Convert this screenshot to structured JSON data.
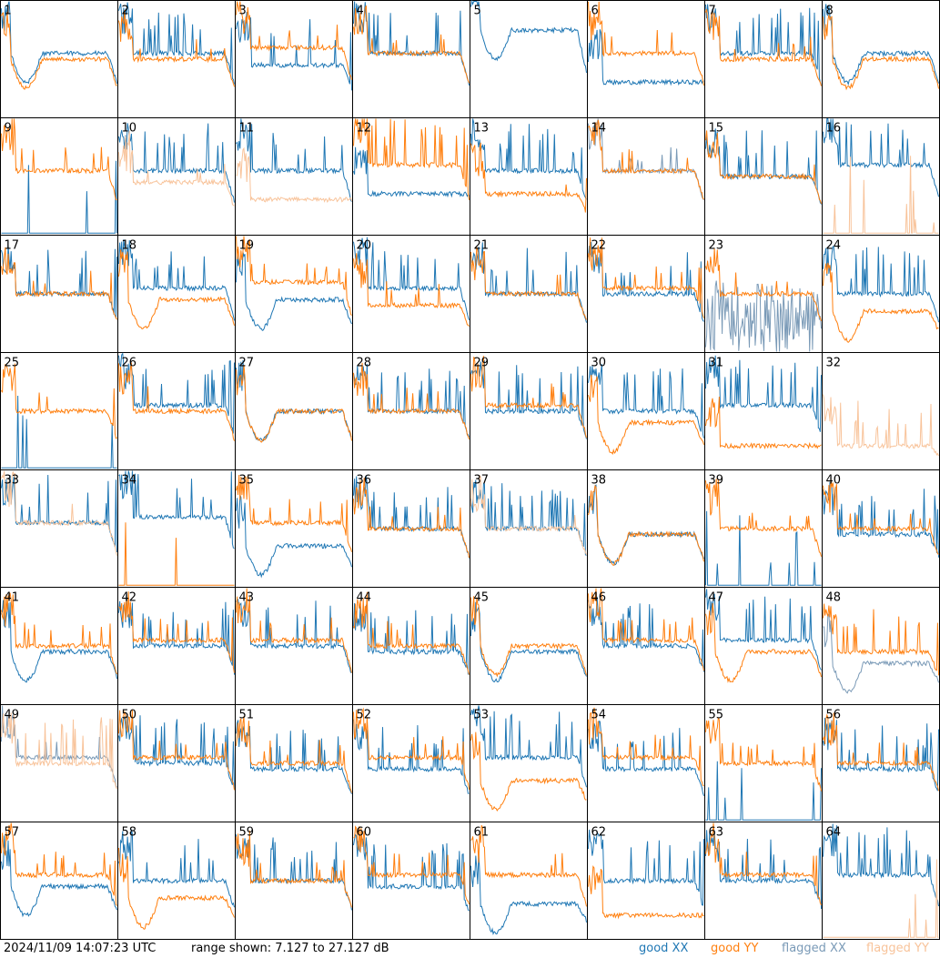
{
  "footer": {
    "timestamp": "2024/11/09 14:07:23 UTC",
    "range": "range shown: 7.127 to 27.127 dB",
    "legend": {
      "good_xx": "good XX",
      "good_yy": "good YY",
      "flagged_xx": "flagged XX",
      "flagged_yy": "flagged YY"
    }
  },
  "colors": {
    "good_xx": "#1f77b4",
    "good_yy": "#ff7f0e",
    "flagged_xx": "#7a9ab7",
    "flagged_yy": "#f8c39a"
  },
  "chart_data": {
    "type": "line",
    "ylim": [
      7.127,
      27.127
    ],
    "grid": {
      "rows": 8,
      "cols": 8
    },
    "panels": [
      {
        "label": "1",
        "xx": {
          "status": "good",
          "shape": "dip",
          "level": 0.55
        },
        "yy": {
          "status": "good",
          "shape": "dip",
          "level": 0.5
        }
      },
      {
        "label": "2",
        "xx": {
          "status": "good",
          "shape": "spiky",
          "level": 0.55
        },
        "yy": {
          "status": "good",
          "shape": "normal",
          "level": 0.5
        }
      },
      {
        "label": "3",
        "xx": {
          "status": "good",
          "shape": "spiky",
          "level": 0.45
        },
        "yy": {
          "status": "good",
          "shape": "normal",
          "level": 0.6
        }
      },
      {
        "label": "4",
        "xx": {
          "status": "good",
          "shape": "spiky",
          "level": 0.55
        },
        "yy": {
          "status": "good",
          "shape": "normal",
          "level": 0.55
        }
      },
      {
        "label": "5",
        "xx": {
          "status": "good",
          "shape": "dip",
          "level": 0.75
        },
        "yy": {
          "status": "good",
          "shape": "none",
          "level": 0
        }
      },
      {
        "label": "6",
        "xx": {
          "status": "good",
          "shape": "low",
          "level": 0.3
        },
        "yy": {
          "status": "good",
          "shape": "normal",
          "level": 0.55
        }
      },
      {
        "label": "7",
        "xx": {
          "status": "good",
          "shape": "spiky",
          "level": 0.55
        },
        "yy": {
          "status": "good",
          "shape": "normal",
          "level": 0.5
        }
      },
      {
        "label": "8",
        "xx": {
          "status": "good",
          "shape": "dip",
          "level": 0.55
        },
        "yy": {
          "status": "good",
          "shape": "dip",
          "level": 0.5
        }
      },
      {
        "label": "9",
        "xx": {
          "status": "good",
          "shape": "bottom",
          "level": 0.05
        },
        "yy": {
          "status": "good",
          "shape": "normal",
          "level": 0.55
        }
      },
      {
        "label": "10",
        "xx": {
          "status": "good",
          "shape": "spiky",
          "level": 0.55
        },
        "yy": {
          "status": "flagged",
          "shape": "normal",
          "level": 0.45
        }
      },
      {
        "label": "11",
        "xx": {
          "status": "good",
          "shape": "spiky",
          "level": 0.55
        },
        "yy": {
          "status": "flagged",
          "shape": "low",
          "level": 0.3
        }
      },
      {
        "label": "12",
        "xx": {
          "status": "good",
          "shape": "low",
          "level": 0.35
        },
        "yy": {
          "status": "good",
          "shape": "spiky",
          "level": 0.6
        }
      },
      {
        "label": "13",
        "xx": {
          "status": "good",
          "shape": "spiky",
          "level": 0.55
        },
        "yy": {
          "status": "good",
          "shape": "normal",
          "level": 0.35
        }
      },
      {
        "label": "14",
        "xx": {
          "status": "flagged",
          "shape": "normal",
          "level": 0.55
        },
        "yy": {
          "status": "good",
          "shape": "normal",
          "level": 0.55
        }
      },
      {
        "label": "15",
        "xx": {
          "status": "good",
          "shape": "spiky",
          "level": 0.5
        },
        "yy": {
          "status": "good",
          "shape": "normal",
          "level": 0.5
        }
      },
      {
        "label": "16",
        "xx": {
          "status": "good",
          "shape": "spiky",
          "level": 0.6
        },
        "yy": {
          "status": "flagged",
          "shape": "bottom",
          "level": 0.02
        }
      },
      {
        "label": "17",
        "xx": {
          "status": "good",
          "shape": "spiky",
          "level": 0.5
        },
        "yy": {
          "status": "good",
          "shape": "normal",
          "level": 0.5
        }
      },
      {
        "label": "18",
        "xx": {
          "status": "good",
          "shape": "spiky",
          "level": 0.55
        },
        "yy": {
          "status": "good",
          "shape": "dip",
          "level": 0.45
        }
      },
      {
        "label": "19",
        "xx": {
          "status": "good",
          "shape": "dip",
          "level": 0.45
        },
        "yy": {
          "status": "good",
          "shape": "normal",
          "level": 0.6
        }
      },
      {
        "label": "20",
        "xx": {
          "status": "good",
          "shape": "spiky",
          "level": 0.55
        },
        "yy": {
          "status": "good",
          "shape": "normal",
          "level": 0.4
        }
      },
      {
        "label": "21",
        "xx": {
          "status": "good",
          "shape": "spiky",
          "level": 0.5
        },
        "yy": {
          "status": "good",
          "shape": "normal",
          "level": 0.5
        }
      },
      {
        "label": "22",
        "xx": {
          "status": "good",
          "shape": "spiky",
          "level": 0.5
        },
        "yy": {
          "status": "good",
          "shape": "normal",
          "level": 0.55
        }
      },
      {
        "label": "23",
        "xx": {
          "status": "flagged",
          "shape": "noisy",
          "level": 0.3
        },
        "yy": {
          "status": "good",
          "shape": "normal",
          "level": 0.5
        }
      },
      {
        "label": "24",
        "xx": {
          "status": "good",
          "shape": "spiky",
          "level": 0.5
        },
        "yy": {
          "status": "good",
          "shape": "dip",
          "level": 0.35
        }
      },
      {
        "label": "25",
        "xx": {
          "status": "good",
          "shape": "bottom",
          "level": 0.02
        },
        "yy": {
          "status": "good",
          "shape": "normal",
          "level": 0.5
        }
      },
      {
        "label": "26",
        "xx": {
          "status": "good",
          "shape": "spiky",
          "level": 0.55
        },
        "yy": {
          "status": "good",
          "shape": "normal",
          "level": 0.5
        }
      },
      {
        "label": "27",
        "xx": {
          "status": "good",
          "shape": "dip",
          "level": 0.5
        },
        "yy": {
          "status": "good",
          "shape": "dip",
          "level": 0.5
        }
      },
      {
        "label": "28",
        "xx": {
          "status": "good",
          "shape": "spiky",
          "level": 0.5
        },
        "yy": {
          "status": "good",
          "shape": "normal",
          "level": 0.5
        }
      },
      {
        "label": "29",
        "xx": {
          "status": "good",
          "shape": "spiky",
          "level": 0.5
        },
        "yy": {
          "status": "good",
          "shape": "normal",
          "level": 0.55
        }
      },
      {
        "label": "30",
        "xx": {
          "status": "good",
          "shape": "spiky",
          "level": 0.5
        },
        "yy": {
          "status": "good",
          "shape": "dip",
          "level": 0.4
        }
      },
      {
        "label": "31",
        "xx": {
          "status": "good",
          "shape": "spiky",
          "level": 0.55
        },
        "yy": {
          "status": "good",
          "shape": "low",
          "level": 0.2
        }
      },
      {
        "label": "32",
        "xx": {
          "status": "good",
          "shape": "none",
          "level": 0
        },
        "yy": {
          "status": "flagged",
          "shape": "spiky",
          "level": 0.2
        }
      },
      {
        "label": "33",
        "xx": {
          "status": "good",
          "shape": "spiky",
          "level": 0.55
        },
        "yy": {
          "status": "flagged",
          "shape": "normal",
          "level": 0.55
        }
      },
      {
        "label": "34",
        "xx": {
          "status": "good",
          "shape": "spiky",
          "level": 0.6
        },
        "yy": {
          "status": "good",
          "shape": "bottom",
          "level": 0.02
        }
      },
      {
        "label": "35",
        "xx": {
          "status": "good",
          "shape": "dip",
          "level": 0.35
        },
        "yy": {
          "status": "good",
          "shape": "normal",
          "level": 0.55
        }
      },
      {
        "label": "36",
        "xx": {
          "status": "good",
          "shape": "spiky",
          "level": 0.5
        },
        "yy": {
          "status": "good",
          "shape": "normal",
          "level": 0.5
        }
      },
      {
        "label": "37",
        "xx": {
          "status": "good",
          "shape": "spiky",
          "level": 0.5
        },
        "yy": {
          "status": "flagged",
          "shape": "normal",
          "level": 0.5
        }
      },
      {
        "label": "38",
        "xx": {
          "status": "good",
          "shape": "dip",
          "level": 0.45
        },
        "yy": {
          "status": "good",
          "shape": "dip",
          "level": 0.45
        }
      },
      {
        "label": "39",
        "xx": {
          "status": "good",
          "shape": "bottom",
          "level": 0.02
        },
        "yy": {
          "status": "good",
          "shape": "normal",
          "level": 0.5
        }
      },
      {
        "label": "40",
        "xx": {
          "status": "good",
          "shape": "spiky",
          "level": 0.45
        },
        "yy": {
          "status": "good",
          "shape": "normal",
          "level": 0.5
        }
      },
      {
        "label": "41",
        "xx": {
          "status": "good",
          "shape": "dip",
          "level": 0.45
        },
        "yy": {
          "status": "good",
          "shape": "normal",
          "level": 0.5
        }
      },
      {
        "label": "42",
        "xx": {
          "status": "good",
          "shape": "spiky",
          "level": 0.5
        },
        "yy": {
          "status": "good",
          "shape": "normal",
          "level": 0.55
        }
      },
      {
        "label": "43",
        "xx": {
          "status": "good",
          "shape": "spiky",
          "level": 0.5
        },
        "yy": {
          "status": "good",
          "shape": "normal",
          "level": 0.55
        }
      },
      {
        "label": "44",
        "xx": {
          "status": "good",
          "shape": "spiky",
          "level": 0.45
        },
        "yy": {
          "status": "good",
          "shape": "normal",
          "level": 0.5
        }
      },
      {
        "label": "45",
        "xx": {
          "status": "good",
          "shape": "dip",
          "level": 0.45
        },
        "yy": {
          "status": "good",
          "shape": "dip",
          "level": 0.5
        }
      },
      {
        "label": "46",
        "xx": {
          "status": "good",
          "shape": "spiky",
          "level": 0.5
        },
        "yy": {
          "status": "good",
          "shape": "normal",
          "level": 0.55
        }
      },
      {
        "label": "47",
        "xx": {
          "status": "good",
          "shape": "spiky",
          "level": 0.55
        },
        "yy": {
          "status": "good",
          "shape": "dip",
          "level": 0.45
        }
      },
      {
        "label": "48",
        "xx": {
          "status": "flagged",
          "shape": "dip",
          "level": 0.35
        },
        "yy": {
          "status": "good",
          "shape": "spiky",
          "level": 0.45
        }
      },
      {
        "label": "49",
        "xx": {
          "status": "flagged",
          "shape": "normal",
          "level": 0.55
        },
        "yy": {
          "status": "flagged",
          "shape": "spiky",
          "level": 0.5
        }
      },
      {
        "label": "50",
        "xx": {
          "status": "good",
          "shape": "spiky",
          "level": 0.5
        },
        "yy": {
          "status": "good",
          "shape": "normal",
          "level": 0.55
        }
      },
      {
        "label": "51",
        "xx": {
          "status": "good",
          "shape": "spiky",
          "level": 0.45
        },
        "yy": {
          "status": "good",
          "shape": "normal",
          "level": 0.5
        }
      },
      {
        "label": "52",
        "xx": {
          "status": "good",
          "shape": "spiky",
          "level": 0.45
        },
        "yy": {
          "status": "good",
          "shape": "normal",
          "level": 0.55
        }
      },
      {
        "label": "53",
        "xx": {
          "status": "good",
          "shape": "spiky",
          "level": 0.55
        },
        "yy": {
          "status": "good",
          "shape": "dip",
          "level": 0.35
        }
      },
      {
        "label": "54",
        "xx": {
          "status": "good",
          "shape": "spiky",
          "level": 0.45
        },
        "yy": {
          "status": "good",
          "shape": "normal",
          "level": 0.55
        }
      },
      {
        "label": "55",
        "xx": {
          "status": "good",
          "shape": "bottom",
          "level": 0.02
        },
        "yy": {
          "status": "good",
          "shape": "normal",
          "level": 0.5
        }
      },
      {
        "label": "56",
        "xx": {
          "status": "good",
          "shape": "spiky",
          "level": 0.45
        },
        "yy": {
          "status": "good",
          "shape": "normal",
          "level": 0.5
        }
      },
      {
        "label": "57",
        "xx": {
          "status": "good",
          "shape": "dip",
          "level": 0.45
        },
        "yy": {
          "status": "good",
          "shape": "normal",
          "level": 0.55
        }
      },
      {
        "label": "58",
        "xx": {
          "status": "good",
          "shape": "spiky",
          "level": 0.5
        },
        "yy": {
          "status": "good",
          "shape": "dip",
          "level": 0.35
        }
      },
      {
        "label": "59",
        "xx": {
          "status": "good",
          "shape": "spiky",
          "level": 0.5
        },
        "yy": {
          "status": "good",
          "shape": "normal",
          "level": 0.5
        }
      },
      {
        "label": "60",
        "xx": {
          "status": "good",
          "shape": "spiky",
          "level": 0.45
        },
        "yy": {
          "status": "good",
          "shape": "normal",
          "level": 0.55
        }
      },
      {
        "label": "61",
        "xx": {
          "status": "good",
          "shape": "dip",
          "level": 0.3
        },
        "yy": {
          "status": "good",
          "shape": "normal",
          "level": 0.55
        }
      },
      {
        "label": "62",
        "xx": {
          "status": "good",
          "shape": "spiky",
          "level": 0.5
        },
        "yy": {
          "status": "good",
          "shape": "low",
          "level": 0.2
        }
      },
      {
        "label": "63",
        "xx": {
          "status": "good",
          "shape": "spiky",
          "level": 0.5
        },
        "yy": {
          "status": "good",
          "shape": "normal",
          "level": 0.55
        }
      },
      {
        "label": "64",
        "xx": {
          "status": "good",
          "shape": "spiky",
          "level": 0.55
        },
        "yy": {
          "status": "flagged",
          "shape": "bottom",
          "level": 0.02
        }
      }
    ]
  }
}
